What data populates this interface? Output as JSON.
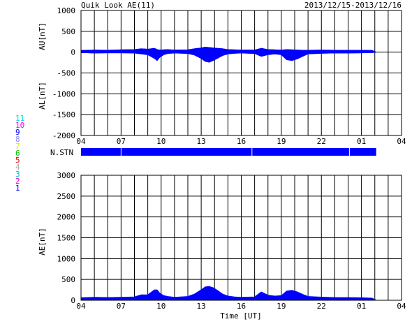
{
  "header": {
    "title": "Quik Look AE(11)",
    "date_range": "2013/12/15-2013/12/16"
  },
  "colors": {
    "fill": "#0000ff",
    "grid": "#000000",
    "background": "#ffffff",
    "station_colors": [
      "#0000ff",
      "#d000d0",
      "#00c0c0",
      "#b0b0b0",
      "#ff0000",
      "#00c000",
      "#e8e800",
      "#9090ff",
      "#0000ff",
      "#ff00ff",
      "#00e0e0"
    ]
  },
  "station_labels": [
    "1",
    "2",
    "3",
    "4",
    "5",
    "6",
    "7",
    "8",
    "9",
    "10",
    "11"
  ],
  "nstn": {
    "label": "N.STN",
    "gap_hours": [
      7.0,
      16.8,
      24.1
    ]
  },
  "chart_data": [
    {
      "type": "area",
      "title": "",
      "ylabel": "AU[nT]",
      "ylabel2": "AL[nT]",
      "xlabel": "",
      "grid": true,
      "ylim": [
        -2000,
        1000
      ],
      "yticks": [
        "1000",
        "500",
        "0",
        "-500",
        "-1000",
        "-1500",
        "-2000"
      ],
      "xticks": [
        "04",
        "07",
        "10",
        "13",
        "16",
        "19",
        "22",
        "01",
        "04"
      ],
      "xlim": [
        4,
        28
      ],
      "x_hours": [
        4.0,
        5.0,
        6.0,
        7.0,
        8.0,
        8.5,
        9.0,
        9.5,
        9.7,
        9.9,
        10.2,
        10.5,
        11.0,
        12.0,
        12.5,
        13.0,
        13.3,
        13.6,
        13.9,
        14.2,
        14.6,
        15.0,
        15.5,
        16.0,
        17.0,
        17.5,
        18.0,
        18.5,
        19.0,
        19.4,
        19.8,
        20.2,
        20.6,
        21.0,
        22.0,
        23.0,
        24.0,
        25.0,
        25.8,
        26.1
      ],
      "series": [
        {
          "name": "AU",
          "values": [
            40,
            50,
            45,
            55,
            60,
            80,
            70,
            90,
            60,
            50,
            55,
            60,
            50,
            55,
            80,
            100,
            120,
            110,
            100,
            90,
            80,
            60,
            55,
            50,
            50,
            90,
            60,
            55,
            50,
            60,
            55,
            50,
            45,
            45,
            50,
            45,
            45,
            45,
            40,
            0
          ]
        },
        {
          "name": "AL",
          "values": [
            -10,
            -20,
            -15,
            -15,
            -20,
            -40,
            -60,
            -150,
            -200,
            -120,
            -60,
            -30,
            -20,
            -30,
            -70,
            -150,
            -220,
            -240,
            -200,
            -150,
            -80,
            -40,
            -25,
            -20,
            -30,
            -100,
            -60,
            -40,
            -60,
            -180,
            -200,
            -160,
            -100,
            -40,
            -25,
            -20,
            -20,
            -15,
            -10,
            0
          ]
        }
      ]
    },
    {
      "type": "area",
      "title": "",
      "ylabel": "AE[nT]",
      "xlabel": "Time [UT]",
      "grid": true,
      "ylim": [
        0,
        3000
      ],
      "yticks": [
        "3000",
        "2500",
        "2000",
        "1500",
        "1000",
        "500",
        "0"
      ],
      "xticks": [
        "04",
        "07",
        "10",
        "13",
        "16",
        "19",
        "22",
        "01",
        "04"
      ],
      "xlim": [
        4,
        28
      ],
      "x_hours": [
        4.0,
        5.0,
        6.0,
        7.0,
        8.0,
        8.5,
        9.0,
        9.5,
        9.7,
        9.9,
        10.2,
        10.5,
        11.0,
        12.0,
        12.5,
        13.0,
        13.3,
        13.6,
        13.9,
        14.2,
        14.6,
        15.0,
        15.5,
        16.0,
        17.0,
        17.5,
        18.0,
        18.5,
        19.0,
        19.4,
        19.8,
        20.2,
        20.6,
        21.0,
        22.0,
        23.0,
        24.0,
        25.0,
        25.8,
        26.1
      ],
      "series": [
        {
          "name": "AE",
          "values": [
            60,
            70,
            65,
            70,
            80,
            130,
            130,
            250,
            250,
            170,
            110,
            90,
            70,
            90,
            150,
            250,
            320,
            330,
            300,
            240,
            150,
            100,
            80,
            70,
            80,
            200,
            120,
            100,
            110,
            220,
            240,
            200,
            140,
            90,
            75,
            65,
            65,
            60,
            50,
            0
          ]
        }
      ]
    }
  ]
}
